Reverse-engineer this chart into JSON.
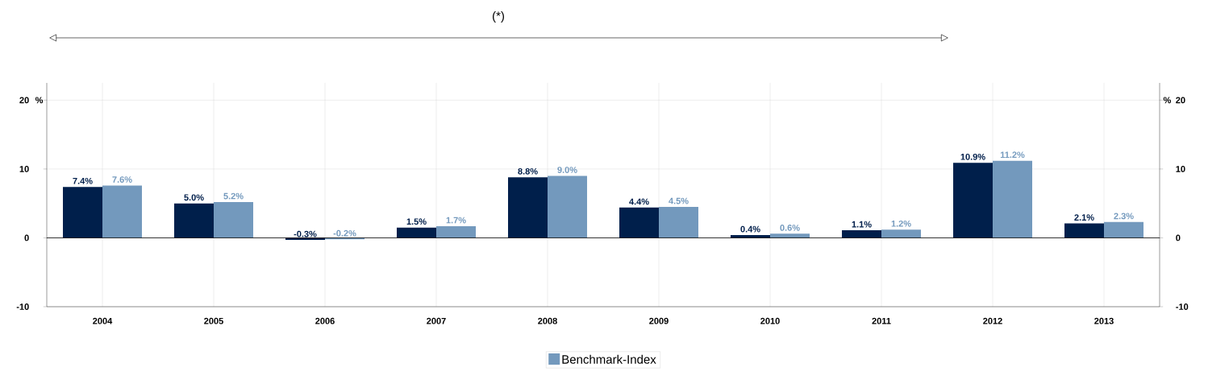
{
  "chart_data": {
    "type": "bar",
    "title": "(*)",
    "ylabel": "%",
    "y2label": "%",
    "categories": [
      "2004",
      "2005",
      "2006",
      "2007",
      "2008",
      "2009",
      "2010",
      "2011",
      "2012",
      "2013"
    ],
    "series": [
      {
        "color": "#001f4b",
        "values": [
          7.4,
          5.0,
          -0.3,
          1.5,
          8.8,
          4.4,
          0.4,
          1.1,
          10.9,
          2.1
        ],
        "value_labels": [
          "7.4%",
          "5.0%",
          "-0.3%",
          "1.5%",
          "8.8%",
          "4.4%",
          "0.4%",
          "1.1%",
          "10.9%",
          "2.1%"
        ]
      },
      {
        "name": "Benchmark-Index",
        "color": "#7399bd",
        "values": [
          7.6,
          5.2,
          -0.2,
          1.7,
          9.0,
          4.5,
          0.6,
          1.2,
          11.2,
          2.3
        ],
        "value_labels": [
          "7.6%",
          "5.2%",
          "-0.2%",
          "1.7%",
          "9.0%",
          "4.5%",
          "0.6%",
          "1.2%",
          "11.2%",
          "2.3%"
        ]
      }
    ],
    "ylim": [
      -10,
      22.5
    ],
    "yticks": [
      -10,
      0,
      10,
      20
    ],
    "y2lim": [
      -10,
      22.5
    ],
    "y2ticks": [
      -10,
      0,
      10,
      20
    ],
    "grid": true,
    "legend": "bottom"
  }
}
